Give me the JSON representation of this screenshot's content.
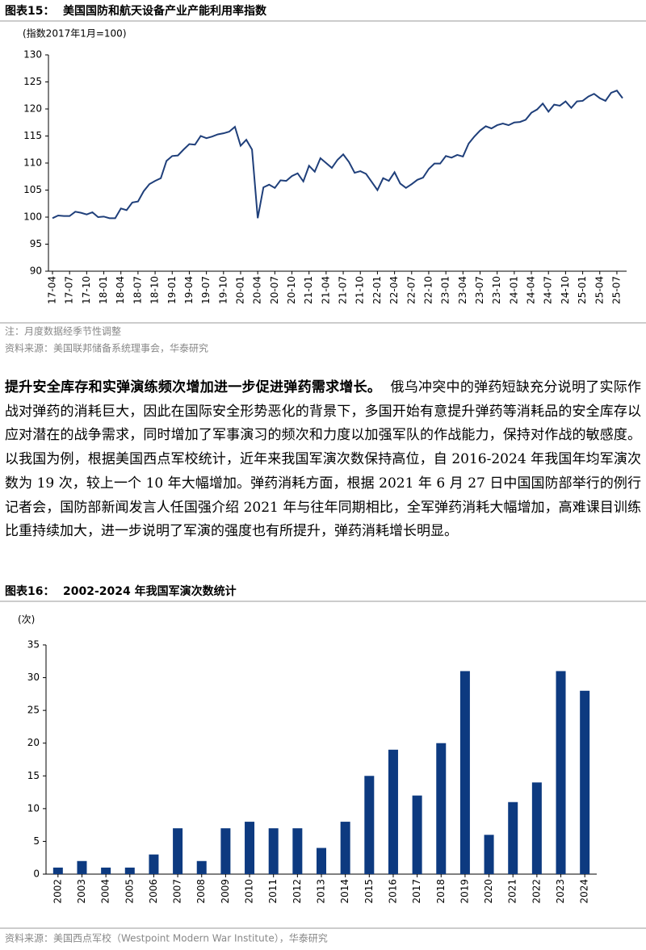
{
  "chart_data": [
    {
      "type": "line",
      "figure_label": "图表15：",
      "title": "美国国防和航天设备产业产能利用率指数",
      "unit_label": "(指数2017年1月=100)",
      "categories": [
        "17-04",
        null,
        null,
        "17-07",
        null,
        null,
        "17-10",
        null,
        null,
        "18-01",
        null,
        null,
        "18-04",
        null,
        null,
        "18-07",
        null,
        null,
        "18-10",
        null,
        null,
        "19-01",
        null,
        null,
        "19-04",
        null,
        null,
        "19-07",
        null,
        null,
        "19-10",
        null,
        null,
        "20-01",
        null,
        null,
        "20-04",
        null,
        null,
        "20-07",
        null,
        null,
        "20-10",
        null,
        null,
        "21-01",
        null,
        null,
        "21-04",
        null,
        null,
        "21-07",
        null,
        null,
        "21-10",
        null,
        null,
        "22-01",
        null,
        null,
        "22-04",
        null,
        null,
        "22-07",
        null,
        null,
        "22-10",
        null,
        null,
        "23-01",
        null,
        null,
        "23-04",
        null,
        null,
        "23-07",
        null,
        null,
        "23-10",
        null,
        null,
        "24-01",
        null,
        null,
        "24-04",
        null,
        null,
        "24-07",
        null,
        null,
        "24-10",
        null,
        null,
        "25-01",
        null,
        null,
        "25-04",
        null,
        null,
        "25-07",
        null
      ],
      "values": [
        99.8,
        100.3,
        100.2,
        100.2,
        101.0,
        100.8,
        100.5,
        100.9,
        100.0,
        100.1,
        99.8,
        99.8,
        101.6,
        101.3,
        102.7,
        102.9,
        104.8,
        106.1,
        106.7,
        107.2,
        110.4,
        111.3,
        111.4,
        112.5,
        113.5,
        113.4,
        115.0,
        114.6,
        114.9,
        115.3,
        115.5,
        115.8,
        116.7,
        113.2,
        114.3,
        112.5,
        99.8,
        105.5,
        106.0,
        105.4,
        106.8,
        106.7,
        107.6,
        108.1,
        106.6,
        109.5,
        108.4,
        110.9,
        110.0,
        109.1,
        110.6,
        111.6,
        110.2,
        108.2,
        108.5,
        108.0,
        106.5,
        105.0,
        107.2,
        106.7,
        108.3,
        106.2,
        105.4,
        106.1,
        106.9,
        107.3,
        108.9,
        109.9,
        109.9,
        111.3,
        111.0,
        111.5,
        111.2,
        113.6,
        114.9,
        116.0,
        116.8,
        116.4,
        117.0,
        117.3,
        117.0,
        117.5,
        117.6,
        118.0,
        119.3,
        119.9,
        121.0,
        119.5,
        120.8,
        120.6,
        121.4,
        120.2,
        121.4,
        121.5,
        122.3,
        122.8,
        122.0,
        121.5,
        123.0,
        123.4,
        122.0
      ],
      "color": "#1f3f7a",
      "ylim": [
        90,
        130
      ],
      "yticks": [
        90,
        95,
        100,
        105,
        110,
        115,
        120,
        125,
        130
      ],
      "note": "注：月度数据经季节性调整",
      "source": "资料来源：美国联邦储备系统理事会，华泰研究"
    },
    {
      "type": "bar",
      "figure_label": "图表16：",
      "title": "2002-2024 年我国军演次数统计",
      "unit_label": "(次)",
      "categories": [
        "2002",
        "2003",
        "2004",
        "2005",
        "2006",
        "2007",
        "2008",
        "2009",
        "2010",
        "2011",
        "2012",
        "2013",
        "2014",
        "2015",
        "2016",
        "2017",
        "2018",
        "2019",
        "2020",
        "2021",
        "2022",
        "2023",
        "2024"
      ],
      "values": [
        1,
        2,
        1,
        1,
        3,
        7,
        2,
        7,
        8,
        7,
        7,
        4,
        8,
        15,
        19,
        12,
        20,
        31,
        6,
        11,
        14,
        31,
        28
      ],
      "color": "#0d3a80",
      "ylim": [
        0,
        35
      ],
      "yticks": [
        0,
        5,
        10,
        15,
        20,
        25,
        30,
        35
      ],
      "source": "资料来源：美国西点军校（Westpoint Modern War Institute），华泰研究"
    }
  ],
  "paragraph": {
    "lead": "提升安全库存和实弹演练频次增加进一步促进弹药需求增长。",
    "body": "俄乌冲突中的弹药短缺充分说明了实际作战对弹药的消耗巨大，因此在国际安全形势恶化的背景下，多国开始有意提升弹药等消耗品的安全库存以应对潜在的战争需求，同时增加了军事演习的频次和力度以加强军队的作战能力，保持对作战的敏感度。以我国为例，根据美国西点军校统计，近年来我国军演次数保持高位，自 2016-2024 年我国年均军演次数为 19 次，较上一个 10 年大幅增加。弹药消耗方面，根据 2021 年 6 月 27 日中国国防部举行的例行记者会，国防部新闻发言人任国强介绍 2021 年与往年同期相比，全军弹药消耗大幅增加，高难课目训练比重持续加大，进一步说明了军演的强度也有所提升，弹药消耗增长明显。"
  }
}
